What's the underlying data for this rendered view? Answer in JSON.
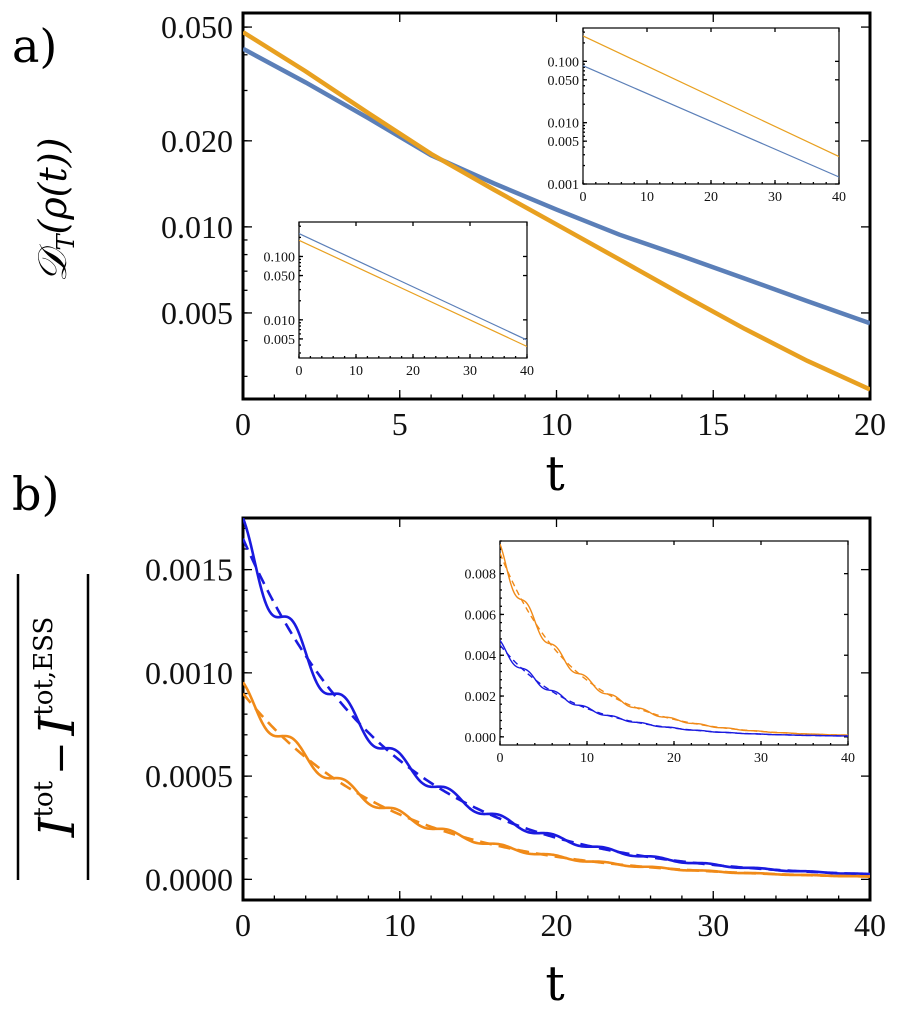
{
  "figure": {
    "panel_a_label": "a)",
    "panel_b_label": "b)"
  },
  "chart_data": [
    {
      "id": "a_main",
      "type": "line",
      "scale": "log",
      "xlabel": "t",
      "ylabel": "D_T(ρ(t))",
      "ylabel_parts": {
        "calligraphic": "𝒟",
        "subscript": "T",
        "argument": "(ρ(t))"
      },
      "xlim": [
        0,
        20
      ],
      "ylim": [
        0.0025,
        0.056
      ],
      "xticks": [
        0,
        5,
        10,
        15,
        20
      ],
      "xtick_labels": [
        "0",
        "5",
        "10",
        "15",
        "20"
      ],
      "yticks": [
        0.005,
        0.01,
        0.02,
        0.05
      ],
      "ytick_labels": [
        "0.005",
        "0.010",
        "0.020",
        "0.050"
      ],
      "series": [
        {
          "name": "blue",
          "color": "#5b7fb8",
          "x": [
            0,
            2,
            4,
            6,
            8,
            10,
            12,
            14,
            16,
            18,
            20
          ],
          "y": [
            0.042,
            0.032,
            0.024,
            0.0178,
            0.0142,
            0.0115,
            0.0094,
            0.0079,
            0.0066,
            0.0055,
            0.0046
          ]
        },
        {
          "name": "orange",
          "color": "#e8a020",
          "x": [
            0,
            2,
            4,
            6,
            8,
            10,
            12,
            14,
            16,
            18,
            20
          ],
          "y": [
            0.048,
            0.035,
            0.025,
            0.018,
            0.0135,
            0.0102,
            0.0077,
            0.0058,
            0.0044,
            0.0034,
            0.0027
          ]
        }
      ]
    },
    {
      "id": "a_inset_top",
      "type": "line",
      "scale": "log",
      "xlim": [
        0,
        40
      ],
      "ylim": [
        0.001,
        0.35
      ],
      "xticks": [
        0,
        10,
        20,
        30,
        40
      ],
      "xtick_labels": [
        "0",
        "10",
        "20",
        "30",
        "40"
      ],
      "yticks": [
        0.001,
        0.005,
        0.01,
        0.05,
        0.1
      ],
      "ytick_labels": [
        "0.001",
        "0.005",
        "0.010",
        "0.050",
        "0.100"
      ],
      "series": [
        {
          "name": "orange",
          "color": "#e8a020",
          "x": [
            0,
            40
          ],
          "y": [
            0.26,
            0.0028
          ]
        },
        {
          "name": "blue",
          "color": "#5b7fb8",
          "x": [
            0,
            40
          ],
          "y": [
            0.085,
            0.0013
          ]
        }
      ]
    },
    {
      "id": "a_inset_bottom",
      "type": "line",
      "scale": "log",
      "xlim": [
        0,
        40
      ],
      "ylim": [
        0.0025,
        0.35
      ],
      "xticks": [
        0,
        10,
        20,
        30,
        40
      ],
      "xtick_labels": [
        "0",
        "10",
        "20",
        "30",
        "40"
      ],
      "yticks": [
        0.005,
        0.01,
        0.05,
        0.1
      ],
      "ytick_labels": [
        "0.005",
        "0.010",
        "0.050",
        "0.100"
      ],
      "series": [
        {
          "name": "blue",
          "color": "#5b7fb8",
          "x": [
            0,
            40
          ],
          "y": [
            0.23,
            0.0048
          ]
        },
        {
          "name": "orange",
          "color": "#e8a020",
          "x": [
            0,
            40
          ],
          "y": [
            0.18,
            0.0038
          ]
        }
      ]
    },
    {
      "id": "b_main",
      "type": "line",
      "xlabel": "t",
      "ylabel": "|I^tot − I^tot,ESS|",
      "ylabel_parts": {
        "base": "I",
        "sup1": "tot",
        "minus": "−",
        "sup2": "tot,ESS"
      },
      "xlim": [
        0,
        40
      ],
      "ylim": [
        -0.0001,
        0.00175
      ],
      "xticks": [
        0,
        10,
        20,
        30,
        40
      ],
      "xtick_labels": [
        "0",
        "10",
        "20",
        "30",
        "40"
      ],
      "yticks": [
        0,
        0.0005,
        0.001,
        0.0015
      ],
      "ytick_labels": [
        "0.0000",
        "0.0005",
        "0.0010",
        "0.0015"
      ],
      "series": [
        {
          "name": "blue",
          "color": "#1a1adf",
          "style": "solid",
          "model": "exp_osc",
          "a": 0.00165,
          "tau": 9.5,
          "osc_amp": 0.06,
          "period": 3.3,
          "tmax": 40
        },
        {
          "name": "blue fit",
          "color": "#1a1adf",
          "style": "dashed",
          "model": "exp",
          "a": 0.00165,
          "tau": 9.5,
          "tmax": 40
        },
        {
          "name": "orange",
          "color": "#f08a18",
          "style": "solid",
          "model": "exp_osc",
          "a": 0.0009,
          "tau": 9.5,
          "osc_amp": 0.06,
          "period": 3.3,
          "tmax": 40
        },
        {
          "name": "orange fit",
          "color": "#f08a18",
          "style": "dashed",
          "model": "exp",
          "a": 0.0009,
          "tau": 9.5,
          "tmax": 40
        }
      ]
    },
    {
      "id": "b_inset",
      "type": "line",
      "xlim": [
        0,
        40
      ],
      "ylim": [
        -0.0004,
        0.0096
      ],
      "xticks": [
        0,
        10,
        20,
        30,
        40
      ],
      "xtick_labels": [
        "0",
        "10",
        "20",
        "30",
        "40"
      ],
      "yticks": [
        0,
        0.002,
        0.004,
        0.006,
        0.008
      ],
      "ytick_labels": [
        "0.000",
        "0.002",
        "0.004",
        "0.006",
        "0.008"
      ],
      "series": [
        {
          "name": "orange",
          "color": "#f08a18",
          "style": "solid",
          "model": "exp_osc",
          "a": 0.009,
          "tau": 8.5,
          "osc_amp": 0.05,
          "period": 3.3,
          "tmax": 40
        },
        {
          "name": "orange fit",
          "color": "#f08a18",
          "style": "dashed",
          "model": "exp",
          "a": 0.009,
          "tau": 8.5,
          "tmax": 40
        },
        {
          "name": "blue",
          "color": "#1a1adf",
          "style": "solid",
          "model": "exp_osc",
          "a": 0.0045,
          "tau": 8.5,
          "osc_amp": 0.05,
          "period": 3.3,
          "tmax": 40
        },
        {
          "name": "blue fit",
          "color": "#1a1adf",
          "style": "dashed",
          "model": "exp",
          "a": 0.0045,
          "tau": 8.5,
          "tmax": 40
        }
      ]
    }
  ]
}
